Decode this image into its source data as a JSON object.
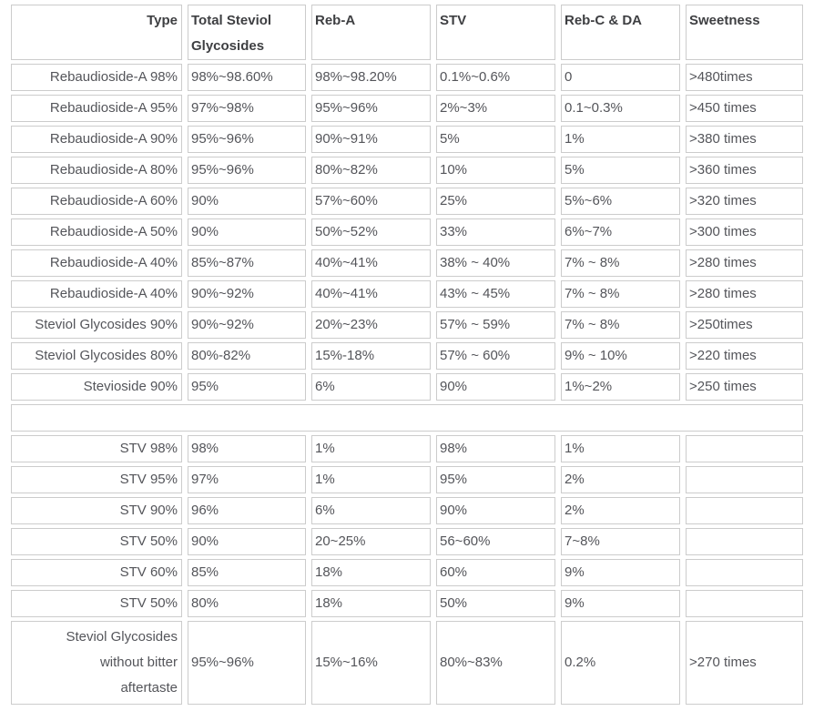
{
  "colors": {
    "border": "#cccccc",
    "body_text": "#54555a",
    "header_text": "#3e3f42",
    "background": "#ffffff"
  },
  "table": {
    "header": [
      "Type",
      "Total Steviol Glycosides",
      "Reb-A",
      "STV",
      "Reb-C & DA",
      "Sweetness"
    ],
    "column_keys": [
      "type",
      "total-steviol-glycosides",
      "reb-a",
      "stv",
      "reb-c-da",
      "sweetness"
    ],
    "sections": [
      {
        "kind": "rows",
        "name": "rebaudioside-section",
        "rows": [
          [
            "Rebaudioside-A 98%",
            "98%~98.60%",
            "98%~98.20%",
            "0.1%~0.6%",
            "0",
            ">480times"
          ],
          [
            "Rebaudioside-A 95%",
            "97%~98%",
            "95%~96%",
            "2%~3%",
            "0.1~0.3%",
            ">450 times"
          ],
          [
            "Rebaudioside-A 90%",
            "95%~96%",
            "90%~91%",
            "5%",
            "1%",
            ">380 times"
          ],
          [
            "Rebaudioside-A 80%",
            "95%~96%",
            "80%~82%",
            "10%",
            "5%",
            ">360 times"
          ],
          [
            "Rebaudioside-A 60%",
            "90%",
            "57%~60%",
            "25%",
            "5%~6%",
            ">320 times"
          ],
          [
            "Rebaudioside-A 50%",
            "90%",
            "50%~52%",
            "33%",
            "6%~7%",
            ">300 times"
          ],
          [
            "Rebaudioside-A 40%",
            "85%~87%",
            "40%~41%",
            "38% ~ 40%",
            "7% ~ 8%",
            ">280 times"
          ],
          [
            "Rebaudioside-A 40%",
            "90%~92%",
            "40%~41%",
            "43% ~ 45%",
            "7% ~ 8%",
            ">280 times"
          ],
          [
            "Steviol Glycosides 90%",
            "90%~92%",
            "20%~23%",
            "57% ~ 59%",
            "7% ~ 8%",
            ">250times"
          ],
          [
            "Steviol Glycosides 80%",
            "80%-82%",
            "15%-18%",
            "57% ~ 60%",
            "9% ~ 10%",
            ">220 times"
          ],
          [
            "Stevioside 90%",
            "95%",
            "6%",
            "90%",
            "1%~2%",
            ">250 times"
          ]
        ]
      },
      {
        "kind": "spacer",
        "name": "spacer-row",
        "text": ""
      },
      {
        "kind": "rows",
        "name": "stv-section",
        "rows": [
          [
            "STV 98%",
            "98%",
            "1%",
            "98%",
            "1%",
            ""
          ],
          [
            "STV 95%",
            "97%",
            "1%",
            "95%",
            "2%",
            ""
          ],
          [
            "STV 90%",
            "96%",
            "6%",
            "90%",
            "2%",
            ""
          ],
          [
            "STV 50%",
            "90%",
            "20~25%",
            "56~60%",
            "7~8%",
            ""
          ],
          [
            "STV 60%",
            "85%",
            "18%",
            "60%",
            "9%",
            ""
          ],
          [
            "STV 50%",
            "80%",
            "18%",
            "50%",
            "9%",
            ""
          ]
        ]
      },
      {
        "kind": "rows",
        "name": "no-bitter-section",
        "tall": true,
        "rows": [
          [
            "Steviol Glycosides\nwithout bitter\naftertaste",
            "95%~96%",
            "15%~16%",
            "80%~83%",
            "0.2%",
            ">270 times"
          ]
        ]
      }
    ]
  }
}
